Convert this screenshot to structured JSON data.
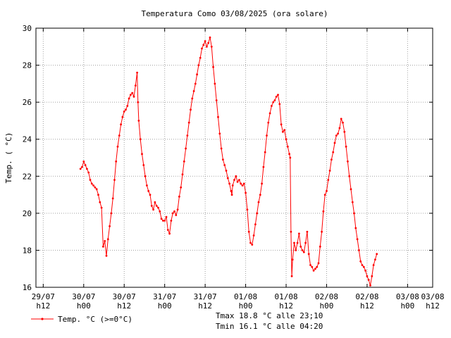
{
  "chart_data": {
    "type": "line",
    "title": "Temperatura Como 03/08/2025 (ora solare)",
    "xlabel": "",
    "ylabel": "Temp. ( °C)",
    "ylim": [
      16,
      30
    ],
    "yticks": [
      16,
      18,
      20,
      22,
      24,
      26,
      28,
      30
    ],
    "xlim": [
      -0.09,
      4.81
    ],
    "xticks": [
      {
        "pos": 0.0,
        "date": "29/07",
        "hour": "h12"
      },
      {
        "pos": 0.5,
        "date": "30/07",
        "hour": "h00"
      },
      {
        "pos": 1.0,
        "date": "30/07",
        "hour": "h12"
      },
      {
        "pos": 1.5,
        "date": "31/07",
        "hour": "h00"
      },
      {
        "pos": 2.0,
        "date": "31/07",
        "hour": "h12"
      },
      {
        "pos": 2.5,
        "date": "01/08",
        "hour": "h00"
      },
      {
        "pos": 3.0,
        "date": "01/08",
        "hour": "h12"
      },
      {
        "pos": 3.5,
        "date": "02/08",
        "hour": "h00"
      },
      {
        "pos": 4.0,
        "date": "02/08",
        "hour": "h12"
      },
      {
        "pos": 4.5,
        "date": "03/08",
        "hour": "h00"
      },
      {
        "pos": 5.0,
        "date": "03/08",
        "hour": "h12"
      }
    ],
    "grid": true,
    "legend_position": "bottom-left",
    "series": [
      {
        "name": "Temp. °C (>=0°C)",
        "color": "#ff0000",
        "x_unit": "days since 29/07 h12",
        "points": [
          [
            0.46,
            22.4
          ],
          [
            0.48,
            22.5
          ],
          [
            0.5,
            22.8
          ],
          [
            0.52,
            22.6
          ],
          [
            0.54,
            22.4
          ],
          [
            0.56,
            22.2
          ],
          [
            0.58,
            21.8
          ],
          [
            0.6,
            21.6
          ],
          [
            0.62,
            21.5
          ],
          [
            0.64,
            21.4
          ],
          [
            0.66,
            21.3
          ],
          [
            0.68,
            21.0
          ],
          [
            0.7,
            20.6
          ],
          [
            0.72,
            20.3
          ],
          [
            0.74,
            18.2
          ],
          [
            0.76,
            18.5
          ],
          [
            0.78,
            17.7
          ],
          [
            0.8,
            18.6
          ],
          [
            0.82,
            19.3
          ],
          [
            0.84,
            20.0
          ],
          [
            0.86,
            20.8
          ],
          [
            0.88,
            21.8
          ],
          [
            0.9,
            22.8
          ],
          [
            0.92,
            23.6
          ],
          [
            0.94,
            24.2
          ],
          [
            0.96,
            24.8
          ],
          [
            0.98,
            25.2
          ],
          [
            1.0,
            25.5
          ],
          [
            1.02,
            25.6
          ],
          [
            1.04,
            25.8
          ],
          [
            1.06,
            26.2
          ],
          [
            1.08,
            26.4
          ],
          [
            1.1,
            26.5
          ],
          [
            1.12,
            26.3
          ],
          [
            1.14,
            26.9
          ],
          [
            1.16,
            27.6
          ],
          [
            1.17,
            26.0
          ],
          [
            1.18,
            25.0
          ],
          [
            1.2,
            24.0
          ],
          [
            1.22,
            23.2
          ],
          [
            1.24,
            22.6
          ],
          [
            1.26,
            22.0
          ],
          [
            1.28,
            21.5
          ],
          [
            1.3,
            21.2
          ],
          [
            1.32,
            21.0
          ],
          [
            1.34,
            20.4
          ],
          [
            1.36,
            20.2
          ],
          [
            1.38,
            20.6
          ],
          [
            1.4,
            20.4
          ],
          [
            1.42,
            20.3
          ],
          [
            1.44,
            20.1
          ],
          [
            1.46,
            19.7
          ],
          [
            1.48,
            19.6
          ],
          [
            1.5,
            19.6
          ],
          [
            1.52,
            19.8
          ],
          [
            1.54,
            19.1
          ],
          [
            1.56,
            18.9
          ],
          [
            1.58,
            19.6
          ],
          [
            1.6,
            20.0
          ],
          [
            1.62,
            20.1
          ],
          [
            1.64,
            19.9
          ],
          [
            1.66,
            20.2
          ],
          [
            1.68,
            20.9
          ],
          [
            1.7,
            21.4
          ],
          [
            1.72,
            22.1
          ],
          [
            1.74,
            22.8
          ],
          [
            1.76,
            23.5
          ],
          [
            1.78,
            24.2
          ],
          [
            1.8,
            24.9
          ],
          [
            1.82,
            25.6
          ],
          [
            1.84,
            26.2
          ],
          [
            1.86,
            26.6
          ],
          [
            1.88,
            27.0
          ],
          [
            1.9,
            27.5
          ],
          [
            1.92,
            28.0
          ],
          [
            1.94,
            28.4
          ],
          [
            1.96,
            28.9
          ],
          [
            1.98,
            29.1
          ],
          [
            2.0,
            29.3
          ],
          [
            2.02,
            29.0
          ],
          [
            2.04,
            29.2
          ],
          [
            2.06,
            29.5
          ],
          [
            2.08,
            29.0
          ],
          [
            2.1,
            27.9
          ],
          [
            2.12,
            27.0
          ],
          [
            2.14,
            26.1
          ],
          [
            2.16,
            25.2
          ],
          [
            2.18,
            24.3
          ],
          [
            2.2,
            23.5
          ],
          [
            2.22,
            22.9
          ],
          [
            2.24,
            22.6
          ],
          [
            2.26,
            22.3
          ],
          [
            2.28,
            21.9
          ],
          [
            2.3,
            21.6
          ],
          [
            2.32,
            21.2
          ],
          [
            2.33,
            21.0
          ],
          [
            2.34,
            21.5
          ],
          [
            2.36,
            21.8
          ],
          [
            2.38,
            22.0
          ],
          [
            2.4,
            21.7
          ],
          [
            2.42,
            21.8
          ],
          [
            2.44,
            21.6
          ],
          [
            2.46,
            21.5
          ],
          [
            2.48,
            21.6
          ],
          [
            2.5,
            21.1
          ],
          [
            2.52,
            20.2
          ],
          [
            2.54,
            19.0
          ],
          [
            2.56,
            18.4
          ],
          [
            2.58,
            18.3
          ],
          [
            2.6,
            18.8
          ],
          [
            2.62,
            19.4
          ],
          [
            2.64,
            20.0
          ],
          [
            2.66,
            20.6
          ],
          [
            2.68,
            21.0
          ],
          [
            2.7,
            21.6
          ],
          [
            2.72,
            22.5
          ],
          [
            2.74,
            23.3
          ],
          [
            2.76,
            24.2
          ],
          [
            2.78,
            24.9
          ],
          [
            2.8,
            25.4
          ],
          [
            2.82,
            25.8
          ],
          [
            2.84,
            26.0
          ],
          [
            2.86,
            26.1
          ],
          [
            2.88,
            26.3
          ],
          [
            2.9,
            26.4
          ],
          [
            2.92,
            25.9
          ],
          [
            2.94,
            24.8
          ],
          [
            2.96,
            24.4
          ],
          [
            2.98,
            24.5
          ],
          [
            3.0,
            24.0
          ],
          [
            3.02,
            23.6
          ],
          [
            3.04,
            23.2
          ],
          [
            3.05,
            23.0
          ],
          [
            3.06,
            19.0
          ],
          [
            3.07,
            16.6
          ],
          [
            3.08,
            17.5
          ],
          [
            3.1,
            18.4
          ],
          [
            3.12,
            18.0
          ],
          [
            3.14,
            18.4
          ],
          [
            3.16,
            18.9
          ],
          [
            3.18,
            18.2
          ],
          [
            3.2,
            18.0
          ],
          [
            3.22,
            17.9
          ],
          [
            3.24,
            18.4
          ],
          [
            3.26,
            19.0
          ],
          [
            3.28,
            17.8
          ],
          [
            3.3,
            17.2
          ],
          [
            3.32,
            17.1
          ],
          [
            3.34,
            16.9
          ],
          [
            3.36,
            17.0
          ],
          [
            3.38,
            17.1
          ],
          [
            3.4,
            17.3
          ],
          [
            3.42,
            18.2
          ],
          [
            3.44,
            19.0
          ],
          [
            3.46,
            20.1
          ],
          [
            3.48,
            21.0
          ],
          [
            3.5,
            21.2
          ],
          [
            3.52,
            21.8
          ],
          [
            3.54,
            22.3
          ],
          [
            3.56,
            22.9
          ],
          [
            3.58,
            23.3
          ],
          [
            3.6,
            23.8
          ],
          [
            3.62,
            24.2
          ],
          [
            3.64,
            24.3
          ],
          [
            3.66,
            24.6
          ],
          [
            3.68,
            25.1
          ],
          [
            3.7,
            24.9
          ],
          [
            3.72,
            24.4
          ],
          [
            3.74,
            23.6
          ],
          [
            3.76,
            22.8
          ],
          [
            3.78,
            22.0
          ],
          [
            3.8,
            21.3
          ],
          [
            3.82,
            20.6
          ],
          [
            3.84,
            20.0
          ],
          [
            3.86,
            19.2
          ],
          [
            3.88,
            18.6
          ],
          [
            3.9,
            18.0
          ],
          [
            3.92,
            17.4
          ],
          [
            3.94,
            17.2
          ],
          [
            3.96,
            17.1
          ],
          [
            3.98,
            16.9
          ],
          [
            4.0,
            16.6
          ],
          [
            4.02,
            16.4
          ],
          [
            4.04,
            16.1
          ],
          [
            4.06,
            16.6
          ],
          [
            4.08,
            17.2
          ],
          [
            4.1,
            17.5
          ],
          [
            4.12,
            17.8
          ]
        ]
      }
    ],
    "annotations": {
      "tmax": "Tmax 18.8 °C alle 23;10",
      "tmin": "Tmin 16.1 °C alle 04:20"
    }
  }
}
